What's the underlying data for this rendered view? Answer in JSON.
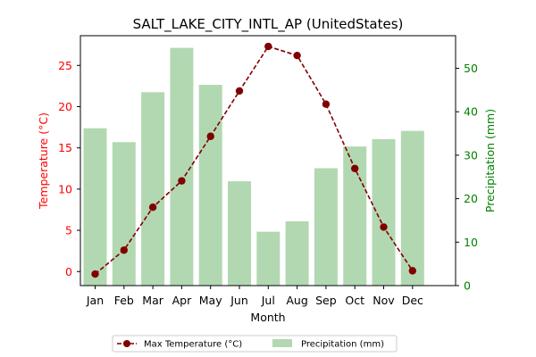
{
  "chart_data": {
    "type": "bar+line",
    "title": "SALT_LAKE_CITY_INTL_AP (UnitedStates)",
    "xlabel": "Month",
    "ylabel_left": "Temperature (°C)",
    "ylabel_right": "Precipitation (mm)",
    "categories": [
      "Jan",
      "Feb",
      "Mar",
      "Apr",
      "May",
      "Jun",
      "Jul",
      "Aug",
      "Sep",
      "Oct",
      "Nov",
      "Dec"
    ],
    "left_axis": {
      "ylim": [
        -1.7,
        28.6
      ],
      "ticks": [
        0,
        5,
        10,
        15,
        20,
        25
      ]
    },
    "right_axis": {
      "ylim": [
        0,
        57.5
      ],
      "ticks": [
        0,
        10,
        20,
        30,
        40,
        50
      ]
    },
    "series": [
      {
        "name": "Max Temperature (°C)",
        "kind": "line",
        "axis": "left",
        "color": "#800000",
        "values": [
          -0.3,
          2.6,
          7.8,
          11.0,
          16.4,
          21.9,
          27.3,
          26.2,
          20.3,
          12.5,
          5.4,
          0.1
        ]
      },
      {
        "name": "Precipitation (mm)",
        "kind": "bar",
        "axis": "right",
        "color": "#b2d8b2",
        "values": [
          36.2,
          33.0,
          44.5,
          54.7,
          46.2,
          24.0,
          12.4,
          14.8,
          27.0,
          32.0,
          33.7,
          35.6
        ]
      }
    ],
    "colors": {
      "left_axis": "#ff0000",
      "right_axis": "#008000"
    },
    "grid": false,
    "legend_position": "bottom-center"
  }
}
